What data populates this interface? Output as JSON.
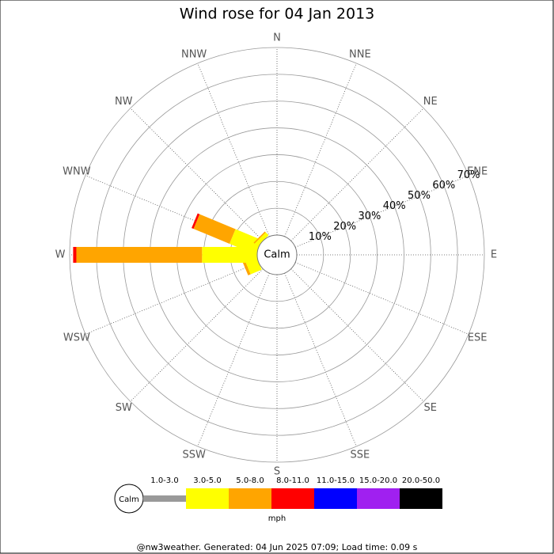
{
  "chart_data": {
    "type": "windrose",
    "title": "Wind rose for 04 Jan 2013",
    "directions": [
      "N",
      "NNE",
      "NE",
      "ENE",
      "E",
      "ESE",
      "SE",
      "SSE",
      "S",
      "SSW",
      "SW",
      "WSW",
      "W",
      "WNW",
      "NW",
      "NNW"
    ],
    "calm_label": "Calm",
    "rlim": [
      0,
      70
    ],
    "rticks": [
      {
        "value": 10,
        "label": "10%"
      },
      {
        "value": 20,
        "label": "20%"
      },
      {
        "value": 30,
        "label": "30%"
      },
      {
        "value": 40,
        "label": "40%"
      },
      {
        "value": 50,
        "label": "50%"
      },
      {
        "value": 60,
        "label": "60%"
      },
      {
        "value": 70,
        "label": "70%"
      }
    ],
    "series": [
      {
        "name": "1.0-3.0",
        "color": "#999999",
        "values": [
          0,
          0,
          0,
          0,
          0,
          0,
          0,
          0,
          0,
          0,
          0,
          0,
          0,
          0,
          0,
          0
        ]
      },
      {
        "name": "3.0-5.0",
        "color": "#ffff00",
        "values": [
          0,
          0,
          0,
          0,
          0,
          0,
          0,
          0,
          0,
          0,
          0,
          4.5,
          20.6,
          10.6,
          1.5,
          0
        ]
      },
      {
        "name": "5.0-8.0",
        "color": "#ffa500",
        "values": [
          0,
          0,
          0,
          0,
          0,
          0,
          0,
          0,
          0,
          0,
          0,
          1.0,
          46.9,
          14.5,
          0.5,
          0
        ]
      },
      {
        "name": "8.0-11.0",
        "color": "#ff0000",
        "values": [
          0,
          0,
          0,
          0,
          0,
          0,
          0,
          0,
          0,
          0,
          0,
          0,
          1.2,
          0.8,
          0,
          0
        ]
      },
      {
        "name": "11.0-15.0",
        "color": "#0000ff",
        "values": [
          0,
          0,
          0,
          0,
          0,
          0,
          0,
          0,
          0,
          0,
          0,
          0,
          0,
          0,
          0,
          0
        ]
      },
      {
        "name": "15.0-20.0",
        "color": "#a020f0",
        "values": [
          0,
          0,
          0,
          0,
          0,
          0,
          0,
          0,
          0,
          0,
          0,
          0,
          0,
          0,
          0,
          0
        ]
      },
      {
        "name": "20.0-50.0",
        "color": "#000000",
        "values": [
          0,
          0,
          0,
          0,
          0,
          0,
          0,
          0,
          0,
          0,
          0,
          0,
          0,
          0,
          0,
          0
        ]
      }
    ],
    "unit": "mph",
    "footer": "@nw3weather. Generated: 04 Jun 2025 07:09; Load time: 0.09 s"
  }
}
